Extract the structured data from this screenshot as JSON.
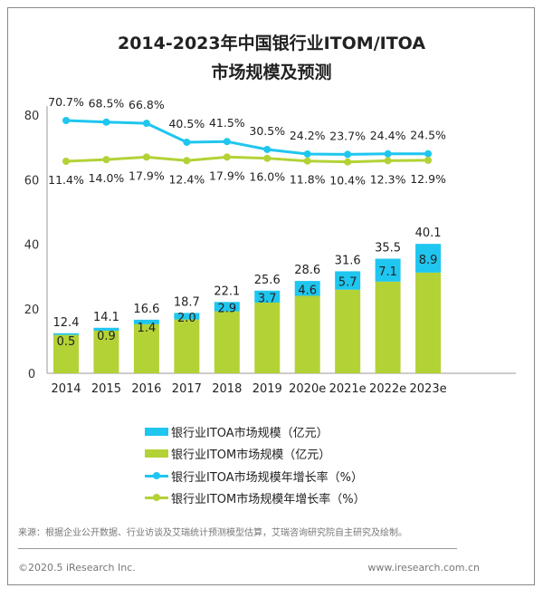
{
  "title_line1": "2014-2023年中国银行业ITOM/ITOA",
  "title_line2": "市场规模及预测",
  "colors": {
    "itoa": "#1fc6ef",
    "itom": "#b3d236"
  },
  "chart_data": {
    "type": "bar",
    "stacked": true,
    "categories": [
      "2014",
      "2015",
      "2016",
      "2017",
      "2018",
      "2019",
      "2020e",
      "2021e",
      "2022e",
      "2023e"
    ],
    "ylim": [
      0,
      80
    ],
    "yticks": [
      "0",
      "20",
      "40",
      "60",
      "80"
    ],
    "totals": [
      "12.4",
      "14.1",
      "16.6",
      "18.7",
      "22.1",
      "25.6",
      "28.6",
      "31.6",
      "35.5",
      "40.1"
    ],
    "series": [
      {
        "name": "银行业ITOM市场规模（亿元）",
        "values": [
          11.9,
          13.2,
          15.2,
          16.7,
          19.2,
          21.9,
          24.0,
          25.9,
          28.4,
          31.2
        ]
      },
      {
        "name": "银行业ITOA市场规模（亿元）",
        "values": [
          0.5,
          0.9,
          1.4,
          2.0,
          2.9,
          3.7,
          4.6,
          5.7,
          7.1,
          8.9
        ],
        "labels": [
          "0.5",
          "0.9",
          "1.4",
          "2.0",
          "2.9",
          "3.7",
          "4.6",
          "5.7",
          "7.1",
          "8.9"
        ]
      }
    ],
    "lines": [
      {
        "name": "银行业ITOA市场规模年增长率（%）",
        "values": [
          70.7,
          68.5,
          66.8,
          40.5,
          41.5,
          30.5,
          24.2,
          23.7,
          24.4,
          24.5
        ],
        "labels": [
          "70.7%",
          "68.5%",
          "66.8%",
          "40.5%",
          "41.5%",
          "30.5%",
          "24.2%",
          "23.7%",
          "24.4%",
          "24.5%"
        ]
      },
      {
        "name": "银行业ITOM市场规模年增长率（%）",
        "values": [
          11.4,
          14.0,
          17.9,
          12.4,
          17.9,
          16.0,
          11.8,
          10.4,
          12.3,
          12.9
        ],
        "labels": [
          "11.4%",
          "14.0%",
          "17.9%",
          "12.4%",
          "17.9%",
          "16.0%",
          "11.8%",
          "10.4%",
          "12.3%",
          "12.9%"
        ]
      }
    ],
    "legend_position": "bottom"
  },
  "source": "来源：根据企业公开数据、行业访谈及艾瑞统计预测模型估算，艾瑞咨询研究院自主研究及绘制。",
  "copyright": "©2020.5 iResearch Inc.",
  "website": "www.iresearch.com.cn"
}
